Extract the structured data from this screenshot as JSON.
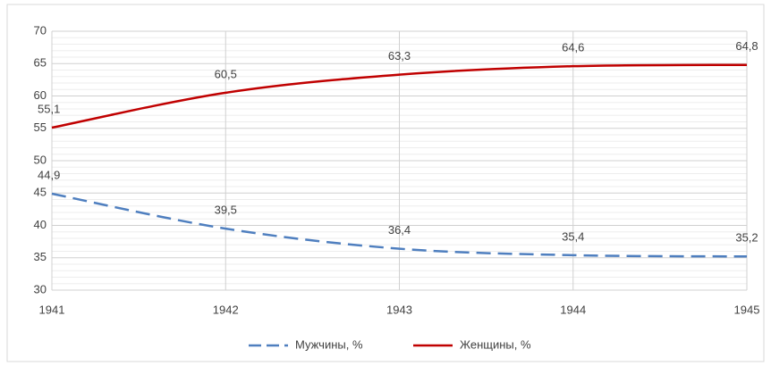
{
  "chart_data": {
    "type": "line",
    "x": [
      1941,
      1942,
      1943,
      1944,
      1945
    ],
    "xlim": [
      1941,
      1945
    ],
    "xticks": [
      1941,
      1942,
      1943,
      1944,
      1945
    ],
    "ylim": [
      30,
      70
    ],
    "yticks": [
      30,
      35,
      40,
      45,
      50,
      55,
      60,
      65,
      70
    ],
    "grid": true,
    "minor_grid": true,
    "smooth": true,
    "legend": "bottom",
    "series": [
      {
        "name": "Мужчины, %",
        "color": "#4f7fbf",
        "dashed": true,
        "values": [
          44.9,
          39.5,
          36.4,
          35.4,
          35.2
        ],
        "value_labels": [
          "44,9",
          "39,5",
          "36,4",
          "35,4",
          "35,2"
        ]
      },
      {
        "name": "Женщины, %",
        "color": "#c00000",
        "dashed": false,
        "values": [
          55.1,
          60.5,
          63.3,
          64.6,
          64.8
        ],
        "value_labels": [
          "55,1",
          "60,5",
          "63,3",
          "64,6",
          "64,8"
        ]
      }
    ]
  }
}
